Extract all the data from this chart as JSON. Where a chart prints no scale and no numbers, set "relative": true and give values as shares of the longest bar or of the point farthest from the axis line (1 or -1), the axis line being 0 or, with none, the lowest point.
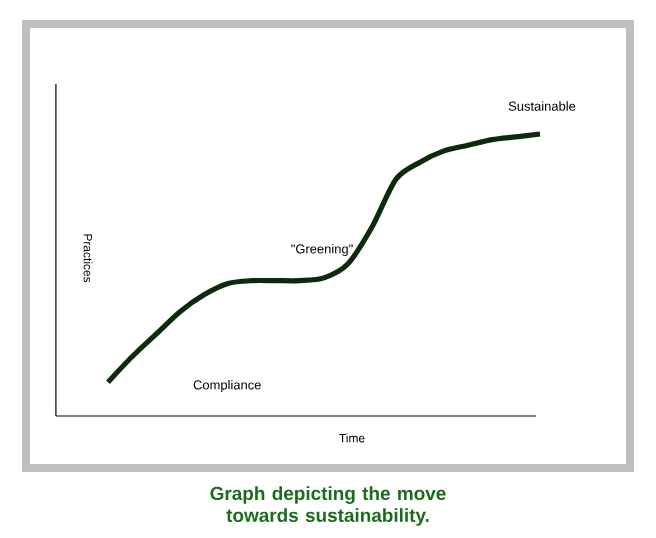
{
  "chart_data": {
    "type": "line",
    "relative": true,
    "xlabel": "Time",
    "ylabel": "Practices",
    "categories": [
      null,
      null,
      null,
      null,
      null,
      null,
      null,
      null,
      null,
      null,
      null,
      null,
      null,
      null,
      null,
      null,
      null,
      null,
      null
    ],
    "series": [
      {
        "color": "#0d2a0d",
        "values": [
          0.12,
          0.21,
          0.29,
          0.37,
          0.43,
          0.47,
          0.48,
          0.48,
          0.48,
          0.49,
          0.54,
          0.67,
          0.84,
          0.9,
          0.94,
          0.96,
          0.98,
          0.99,
          1
        ]
      }
    ],
    "annotations": [
      "Compliance",
      "\"Greening\"",
      "Sustainable",
      "Graph depicting the move towards sustainability."
    ],
    "marker": "none",
    "line_style": "solid"
  }
}
